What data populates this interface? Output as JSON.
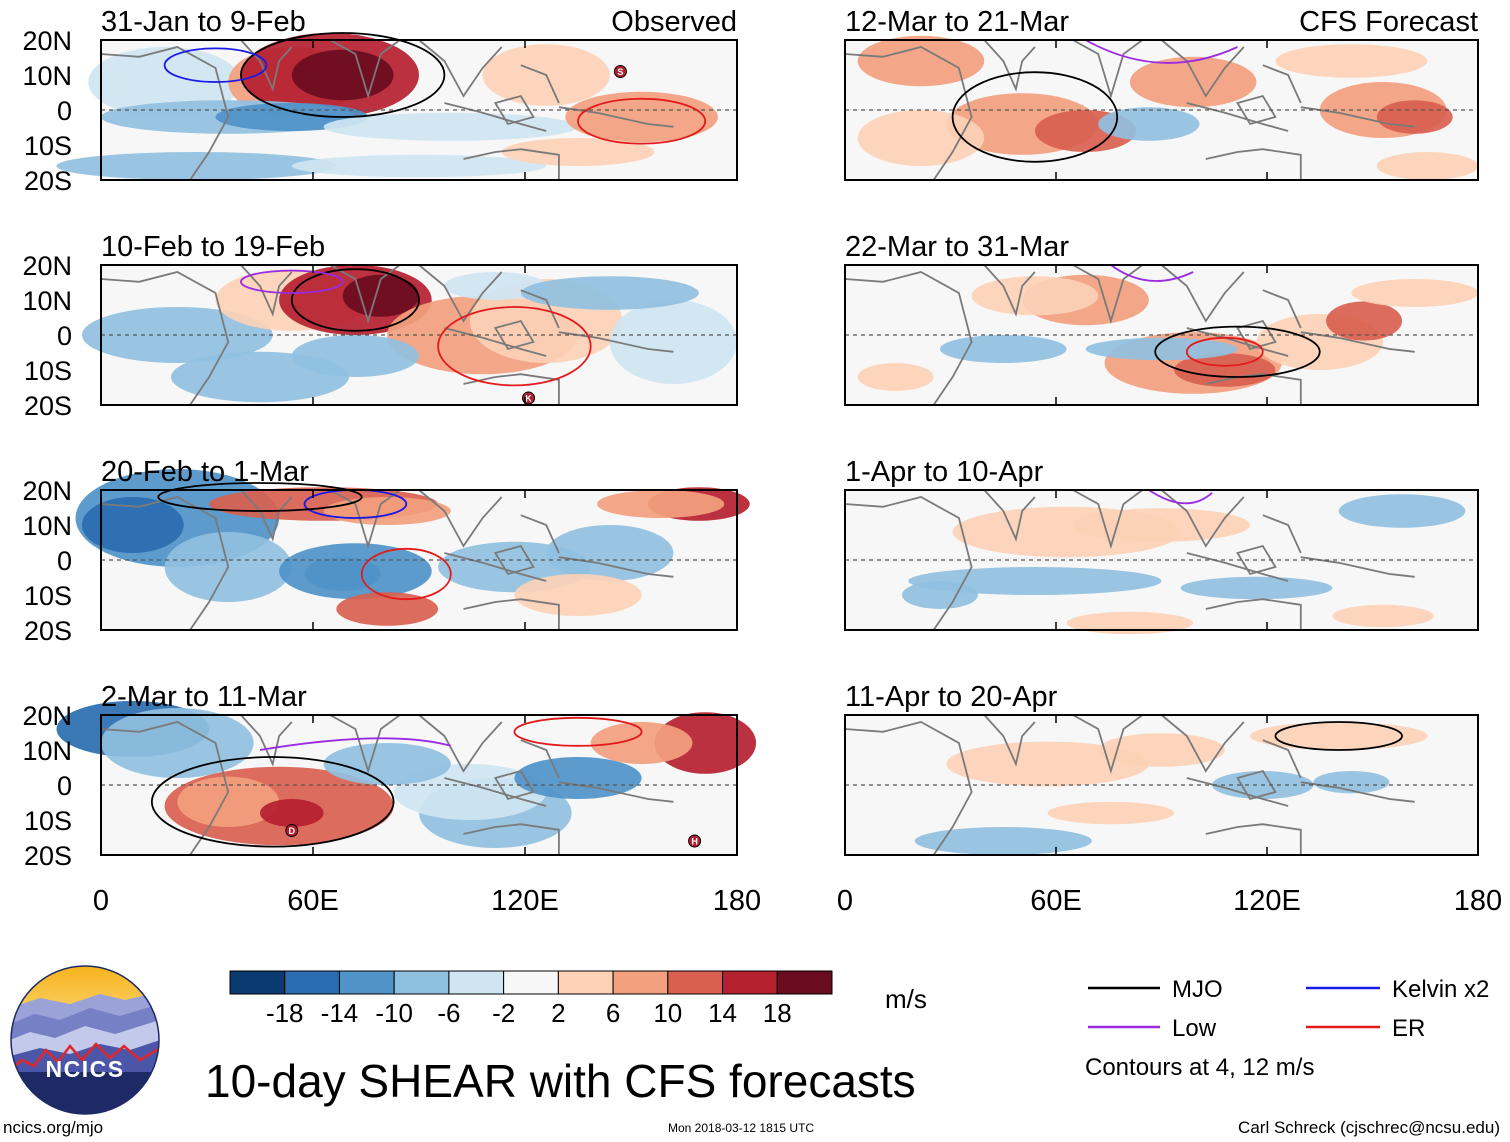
{
  "chart_data": {
    "type": "heatmap",
    "title": "10-day SHEAR with CFS forecasts",
    "units": "m/s",
    "colorbar_ticks": [
      "-18",
      "-14",
      "-10",
      "-6",
      "-2",
      "2",
      "6",
      "10",
      "14",
      "18"
    ],
    "colorbar_colors": [
      "#0a3a70",
      "#2a6cb0",
      "#4f93c8",
      "#90c0e0",
      "#cfe5f2",
      "#f7f7f7",
      "#fcd1b6",
      "#f2a07e",
      "#d9604f",
      "#b5202f",
      "#6a0c20"
    ],
    "y_ticks": [
      "20N",
      "10N",
      "0",
      "10S",
      "20S"
    ],
    "x_ticks": [
      "0",
      "60E",
      "120E",
      "180"
    ],
    "x_range": [
      0,
      180
    ],
    "y_range": [
      -20,
      20
    ],
    "columns": [
      {
        "header": "Observed",
        "panels": [
          {
            "label": "31-Jan to 9-Feb",
            "storms": [
              {
                "symbol": "S",
                "lon": 147,
                "lat": 11
              }
            ]
          },
          {
            "label": "10-Feb to 19-Feb",
            "storms": [
              {
                "symbol": "K",
                "lon": 121,
                "lat": -18
              }
            ]
          },
          {
            "label": "20-Feb to 1-Mar",
            "storms": []
          },
          {
            "label": "2-Mar to 11-Mar",
            "storms": [
              {
                "symbol": "D",
                "lon": 54,
                "lat": -13
              },
              {
                "symbol": "H",
                "lon": 168,
                "lat": -16
              }
            ]
          }
        ]
      },
      {
        "header": "CFS Forecast",
        "panels": [
          {
            "label": "12-Mar to 21-Mar",
            "storms": []
          },
          {
            "label": "22-Mar to 31-Mar",
            "storms": []
          },
          {
            "label": "1-Apr to 10-Apr",
            "storms": []
          },
          {
            "label": "11-Apr to 20-Apr",
            "storms": []
          }
        ]
      }
    ]
  },
  "legend": {
    "items": [
      {
        "label": "MJO",
        "color": "#000000"
      },
      {
        "label": "Kelvin x2",
        "color": "#1a1ae6"
      },
      {
        "label": "Low",
        "color": "#9a2be2"
      },
      {
        "label": "ER",
        "color": "#e31a1c"
      }
    ],
    "note": "Contours at 4, 12 m/s"
  },
  "logo": {
    "text": "NCICS"
  },
  "footer": {
    "left": "ncics.org/mjo",
    "center": "Mon 2018-03-12 1815 UTC",
    "right": "Carl Schreck (cjschrec@ncsu.edu)"
  }
}
